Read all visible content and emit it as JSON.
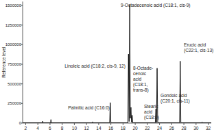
{
  "chart_data": {
    "type": "line",
    "y_label": "Reference level",
    "x": [
      1.5,
      4.75,
      4.8,
      4.85,
      6.1,
      6.15,
      6.2,
      12.95,
      13.0,
      13.05,
      15.8,
      15.9,
      16.0,
      18.8,
      18.9,
      19.0,
      19.1,
      19.2,
      19.3,
      19.4,
      19.5,
      19.6,
      23.3,
      23.4,
      23.5,
      23.6,
      23.7,
      27.3,
      27.4,
      27.5,
      30.95,
      31.0,
      31.05,
      32.5
    ],
    "values": [
      3000,
      3000,
      25000,
      3000,
      3000,
      45000,
      3000,
      3000,
      15000,
      3000,
      3000,
      260000,
      3000,
      3000,
      880000,
      20000,
      1510000,
      60000,
      200000,
      10000,
      100000,
      3000,
      3000,
      180000,
      5000,
      700000,
      3000,
      3000,
      790000,
      3000,
      3000,
      12000,
      3000,
      3000
    ],
    "color": "#000000",
    "xlim": [
      1.5,
      32.5
    ],
    "xticks": [
      2,
      4,
      6,
      8,
      10,
      12,
      14,
      16,
      18,
      20,
      22,
      24,
      26,
      28,
      30,
      32
    ],
    "ylim": [
      0,
      1550000
    ],
    "yticks": [
      0,
      250000,
      500000,
      750000,
      1000000,
      1250000,
      1500000
    ],
    "grid": false,
    "annotations": [
      [
        "9-Octadecenoic acid (C18:1, cis-9)"
      ],
      [
        "Linoleic acid (C18:2, cis-9, 12)"
      ],
      [
        "Gondoic acid",
        "(C20:1, cis-11)"
      ],
      [
        "Erucic acid",
        "(C22:1, cis-13)"
      ],
      [
        "8-Octade-",
        "cenoic",
        "acid",
        "(C18:1,",
        "trans-8)"
      ],
      [
        "Stearic",
        "acid",
        "(C18:0)"
      ],
      [
        "Palmitic acid (C16:0)"
      ]
    ]
  }
}
